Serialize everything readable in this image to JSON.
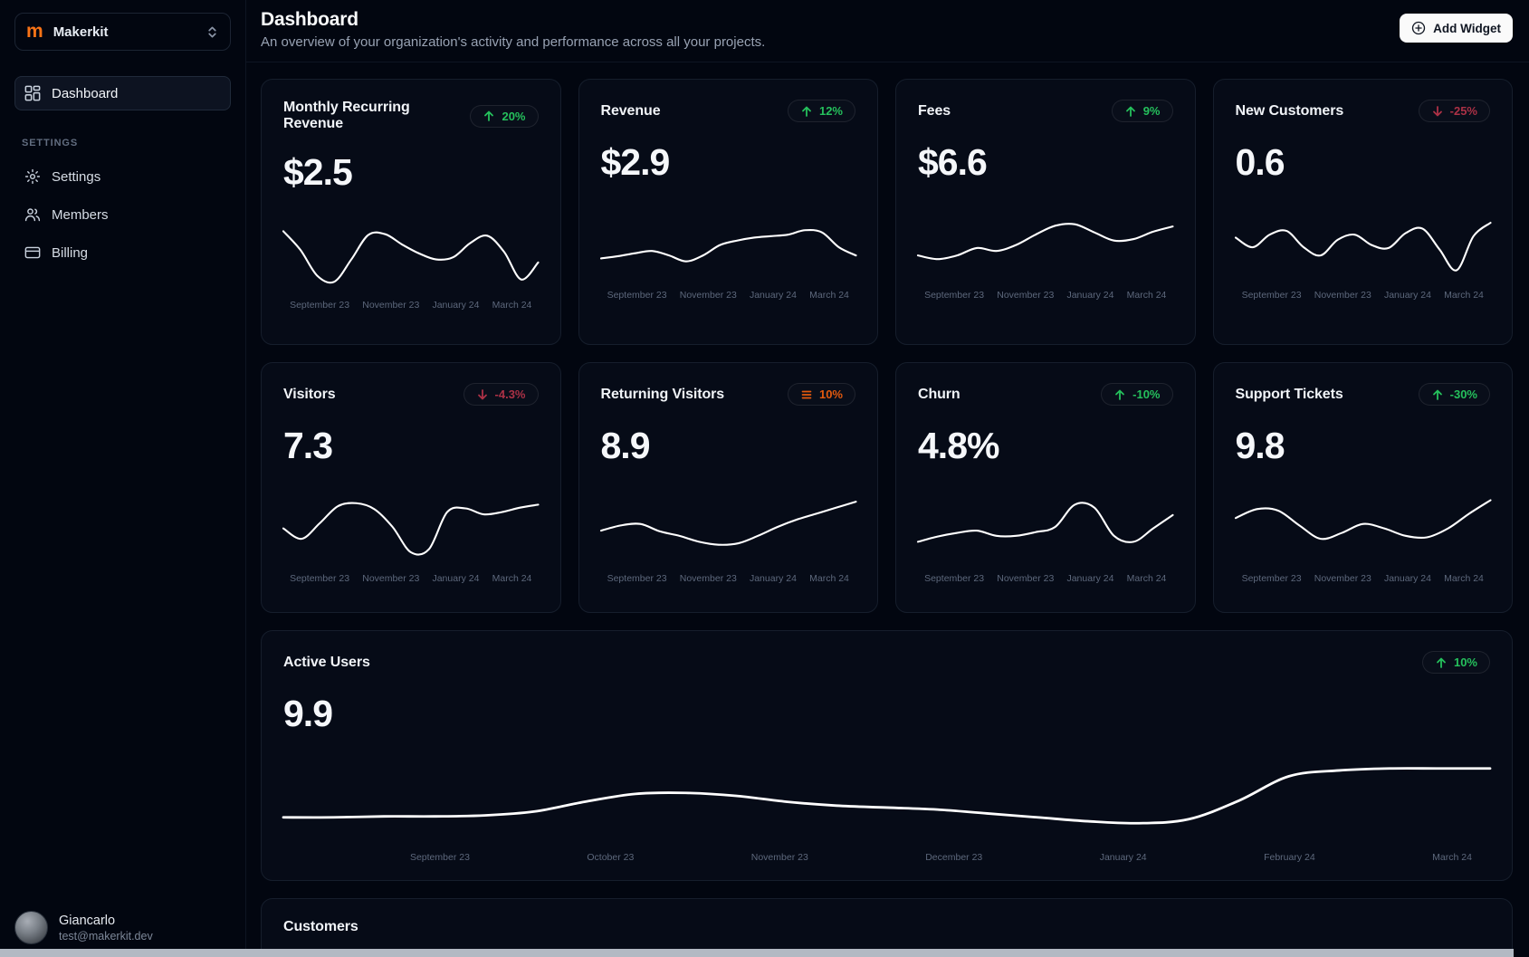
{
  "colors": {
    "green": "#25c05c",
    "red": "#ac3146",
    "orange": "#e2590e",
    "brand_orange": "#f97316"
  },
  "sidebar": {
    "workspace": {
      "name": "Makerkit",
      "logo_letter": "m"
    },
    "nav": [
      {
        "label": "Dashboard"
      }
    ],
    "settings_heading": "SETTINGS",
    "settings_items": [
      {
        "label": "Settings"
      },
      {
        "label": "Members"
      },
      {
        "label": "Billing"
      }
    ],
    "user": {
      "name": "Giancarlo",
      "email": "test@makerkit.dev"
    }
  },
  "header": {
    "title": "Dashboard",
    "subtitle": "An overview of your organization's activity and performance across all your projects.",
    "add_widget_label": "Add Widget"
  },
  "stats": [
    {
      "title": "Monthly Recurring Revenue",
      "value": "$2.5",
      "change": "20%",
      "trend": "up",
      "x_labels": [
        "September 23",
        "November 23",
        "January 24",
        "March 24"
      ],
      "spark": [
        20,
        45,
        80,
        88,
        58,
        25,
        24,
        38,
        50,
        58,
        55,
        36,
        26,
        48,
        85,
        62
      ]
    },
    {
      "title": "Revenue",
      "value": "$2.9",
      "change": "12%",
      "trend": "up",
      "x_labels": [
        "September 23",
        "November 23",
        "January 24",
        "March 24"
      ],
      "spark": [
        70,
        67,
        63,
        60,
        66,
        74,
        66,
        52,
        46,
        42,
        40,
        38,
        32,
        35,
        55,
        66
      ]
    },
    {
      "title": "Fees",
      "value": "$6.6",
      "change": "9%",
      "trend": "up",
      "x_labels": [
        "September 23",
        "November 23",
        "January 24",
        "March 24"
      ],
      "spark": [
        66,
        71,
        66,
        56,
        60,
        52,
        38,
        26,
        24,
        35,
        46,
        44,
        34,
        27
      ]
    },
    {
      "title": "New Customers",
      "value": "0.6",
      "change": "-25%",
      "trend": "down",
      "x_labels": [
        "September 23",
        "November 23",
        "January 24",
        "March 24"
      ],
      "spark": [
        42,
        55,
        38,
        33,
        55,
        66,
        45,
        38,
        52,
        56,
        36,
        30,
        58,
        86,
        40,
        22
      ]
    },
    {
      "title": "Visitors",
      "value": "7.3",
      "change": "-4.3%",
      "trend": "down",
      "x_labels": [
        "September 23",
        "November 23",
        "January 24",
        "March 24"
      ],
      "spark": [
        52,
        66,
        45,
        22,
        18,
        26,
        50,
        84,
        80,
        30,
        25,
        33,
        30,
        24,
        20
      ]
    },
    {
      "title": "Returning Visitors",
      "value": "8.9",
      "change": "10%",
      "trend": "flat",
      "x_labels": [
        "September 23",
        "November 23",
        "January 24",
        "March 24"
      ],
      "spark": [
        55,
        48,
        46,
        56,
        62,
        70,
        74,
        72,
        62,
        50,
        40,
        32,
        24,
        16
      ]
    },
    {
      "title": "Churn",
      "value": "4.8%",
      "change": "-10%",
      "trend": "up",
      "x_labels": [
        "September 23",
        "November 23",
        "January 24",
        "March 24"
      ],
      "spark": [
        70,
        63,
        58,
        55,
        62,
        62,
        57,
        50,
        20,
        24,
        62,
        70,
        52,
        34
      ]
    },
    {
      "title": "Support Tickets",
      "value": "9.8",
      "change": "-30%",
      "trend": "up",
      "x_labels": [
        "September 23",
        "November 23",
        "January 24",
        "March 24"
      ],
      "spark": [
        38,
        26,
        28,
        48,
        66,
        58,
        46,
        52,
        62,
        64,
        52,
        32,
        14
      ]
    }
  ],
  "active_users": {
    "title": "Active Users",
    "value": "9.9",
    "change": "10%",
    "trend": "up",
    "x_labels": [
      "September 23",
      "October 23",
      "November 23",
      "December 23",
      "January 24",
      "February 24",
      "March 24"
    ],
    "spark": [
      72,
      72,
      71,
      71,
      70,
      66,
      56,
      48,
      47,
      50,
      56,
      60,
      62,
      64,
      68,
      72,
      76,
      78,
      74,
      55,
      30,
      24,
      22,
      22,
      22
    ]
  },
  "customers": {
    "title": "Customers"
  }
}
